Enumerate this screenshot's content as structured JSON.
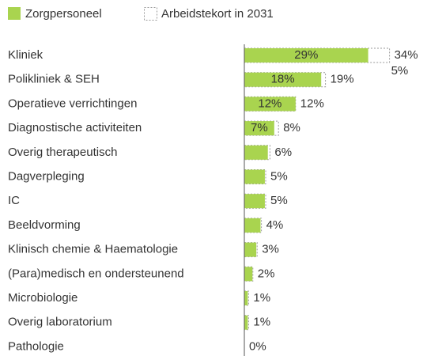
{
  "chart_data": {
    "type": "bar",
    "orientation": "horizontal",
    "categories": [
      "Kliniek",
      "Polikliniek & SEH",
      "Operatieve verrichtingen",
      "Diagnostische activiteiten",
      "Overig therapeutisch",
      "Dagverpleging",
      "IC",
      "Beeldvorming",
      "Klinisch chemie & Haematologie",
      "(Para)medisch en ondersteunend",
      "Microbiologie",
      "Overig laboratorium",
      "Pathologie"
    ],
    "series": [
      {
        "name": "Zorgpersoneel",
        "color": "#a9d44f",
        "values": [
          29,
          18,
          12,
          7,
          5.5,
          4.8,
          4.8,
          3.8,
          2.8,
          1.9,
          0.8,
          0.8,
          0
        ],
        "value_labels": [
          "29%",
          "18%",
          "12%",
          "7%",
          null,
          null,
          null,
          null,
          null,
          null,
          null,
          null,
          null
        ]
      },
      {
        "name": "Arbeidstekort in 2031",
        "color": "#999999",
        "values": [
          34,
          19,
          12,
          8,
          6,
          5,
          5,
          4,
          3,
          2,
          1,
          1,
          0
        ],
        "value_labels": [
          "34%",
          "19%",
          "12%",
          "8%",
          "6%",
          "5%",
          "5%",
          "4%",
          "3%",
          "2%",
          "1%",
          "1%",
          "0%"
        ]
      }
    ],
    "annotations": [
      {
        "text": "5%",
        "category": "Kliniek"
      }
    ],
    "xlim": [
      0,
      40
    ],
    "legend": "top-left"
  }
}
